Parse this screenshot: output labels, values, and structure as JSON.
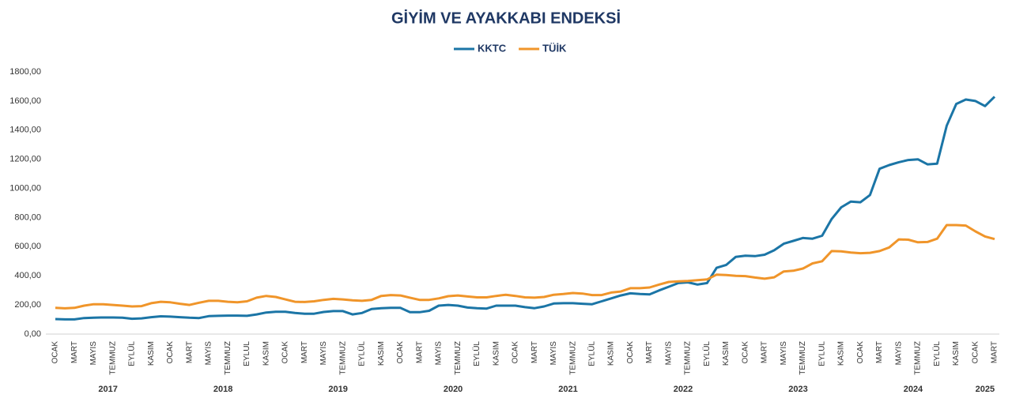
{
  "chart_data": {
    "type": "line",
    "title": "GİYİM VE AYAKKABI ENDEKSİ",
    "categories": [
      "OCAK",
      null,
      "MART",
      null,
      "MAYIS",
      null,
      "TEMMUZ",
      null,
      "EYLÜL",
      null,
      "KASIM",
      null,
      "OCAK",
      null,
      "MART",
      null,
      "MAYIS",
      null,
      "TEMMUZ",
      null,
      "EYLUL",
      null,
      "KASIM",
      null,
      "OCAK",
      null,
      "MART",
      null,
      "MAYIS",
      null,
      "TEMMUZ",
      null,
      "EYLÜL",
      null,
      "KASIM",
      null,
      "OCAK",
      null,
      "MART",
      null,
      "MAYIS",
      null,
      "TEMMUZ",
      null,
      "EYLÜL",
      null,
      "KASIM",
      null,
      "OCAK",
      null,
      "MART",
      null,
      "MAYIS",
      null,
      "TEMMUZ",
      null,
      "EYLÜL",
      null,
      "KASIM",
      null,
      "OCAK",
      null,
      "MART",
      null,
      "MAYIS",
      null,
      "TEMMUZ",
      null,
      "EYLÜL",
      null,
      "KASIM",
      null,
      "OCAK",
      null,
      "MART",
      null,
      "MAYIS",
      null,
      "TEMMUZ",
      null,
      "EYLUL",
      null,
      "KASIM",
      null,
      "OCAK",
      null,
      "MART",
      null,
      "MAYIS",
      null,
      "TEMMUZ",
      null,
      "EYLÜL",
      null,
      "KASIM",
      null,
      "OCAK",
      null,
      "MART"
    ],
    "years": [
      "2017",
      "2018",
      "2019",
      "2020",
      "2021",
      "2022",
      "2023",
      "2024",
      "2025"
    ],
    "series": [
      {
        "name": "KKTC",
        "color": "#1b75a6",
        "values": [
          103,
          101,
          101,
          110,
          113,
          114,
          114,
          113,
          105,
          108,
          116,
          122,
          120,
          116,
          112,
          110,
          123,
          125,
          127,
          127,
          125,
          135,
          148,
          153,
          153,
          145,
          140,
          140,
          152,
          158,
          158,
          135,
          145,
          172,
          178,
          180,
          180,
          150,
          150,
          160,
          195,
          200,
          195,
          182,
          178,
          175,
          195,
          195,
          195,
          185,
          178,
          190,
          210,
          212,
          212,
          208,
          205,
          225,
          245,
          265,
          280,
          275,
          272,
          300,
          325,
          350,
          355,
          340,
          350,
          455,
          475,
          530,
          538,
          535,
          545,
          575,
          620,
          640,
          660,
          655,
          675,
          790,
          870,
          910,
          905,
          955,
          1135,
          1160,
          1180,
          1195,
          1200,
          1165,
          1170,
          1430,
          1580,
          1610,
          1600,
          1565,
          1630
        ]
      },
      {
        "name": "TÜİK",
        "color": "#f0952a",
        "values": [
          180,
          177,
          180,
          195,
          205,
          205,
          200,
          195,
          190,
          192,
          212,
          222,
          218,
          208,
          200,
          215,
          228,
          228,
          222,
          218,
          225,
          250,
          262,
          255,
          238,
          222,
          220,
          225,
          235,
          242,
          238,
          232,
          228,
          235,
          262,
          268,
          265,
          250,
          235,
          235,
          245,
          260,
          265,
          258,
          252,
          252,
          262,
          270,
          262,
          252,
          250,
          255,
          270,
          275,
          282,
          278,
          268,
          268,
          285,
          292,
          315,
          315,
          320,
          340,
          358,
          362,
          365,
          370,
          375,
          408,
          405,
          400,
          398,
          388,
          380,
          390,
          430,
          435,
          450,
          485,
          500,
          570,
          568,
          560,
          555,
          558,
          570,
          595,
          650,
          648,
          630,
          632,
          655,
          748,
          748,
          745,
          705,
          670,
          652
        ]
      }
    ],
    "ylim": [
      0,
      1800
    ],
    "yticks": [
      {
        "value": 0,
        "label": "0,00"
      },
      {
        "value": 200,
        "label": "200,00"
      },
      {
        "value": 400,
        "label": "400,00"
      },
      {
        "value": 600,
        "label": "600,00"
      },
      {
        "value": 800,
        "label": "800,00"
      },
      {
        "value": 1000,
        "label": "1000,00"
      },
      {
        "value": 1200,
        "label": "1200,00"
      },
      {
        "value": 1400,
        "label": "1400,00"
      },
      {
        "value": 1600,
        "label": "1600,00"
      },
      {
        "value": 1800,
        "label": "1800,00"
      }
    ],
    "legend": "top",
    "grid": false
  }
}
